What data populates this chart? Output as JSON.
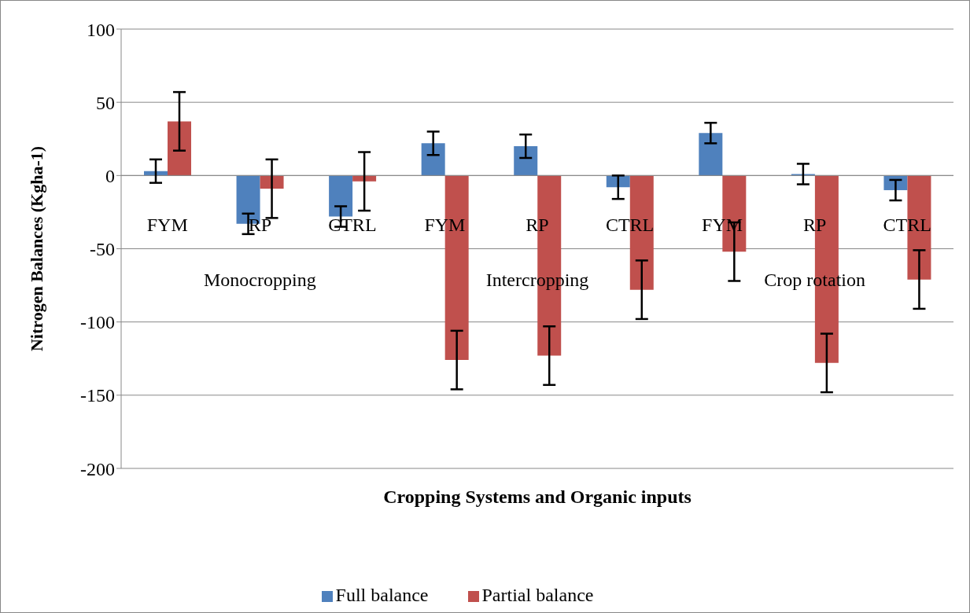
{
  "chart_data": {
    "type": "bar",
    "xlabel": "Cropping Systems and Organic inputs",
    "ylabel": "Nitrogen Balances (Kgha-1)",
    "categories": [
      "FYM",
      "RP",
      "CTRL",
      "FYM",
      "RP",
      "CTRL",
      "FYM",
      "RP",
      "CTRL"
    ],
    "annotations": [
      "Monocropping",
      "Intercropping",
      "Crop rotation"
    ],
    "series": [
      {
        "name": "Full balance",
        "color": "#4f81bd",
        "values": [
          3,
          -33,
          -28,
          22,
          20,
          -8,
          29,
          1,
          -10
        ],
        "errors": [
          8,
          7,
          7,
          8,
          8,
          8,
          7,
          7,
          7
        ]
      },
      {
        "name": "Partial balance",
        "color": "#c0504d",
        "values": [
          37,
          -9,
          -4,
          -126,
          -123,
          -78,
          -52,
          -128,
          -71
        ],
        "errors": [
          20,
          20,
          20,
          20,
          20,
          20,
          20,
          20,
          20
        ]
      }
    ],
    "ylim": [
      -200,
      100
    ],
    "yticks": [
      -200,
      -150,
      -100,
      -50,
      0,
      50,
      100
    ],
    "grid": "y",
    "legend": "bottom"
  }
}
